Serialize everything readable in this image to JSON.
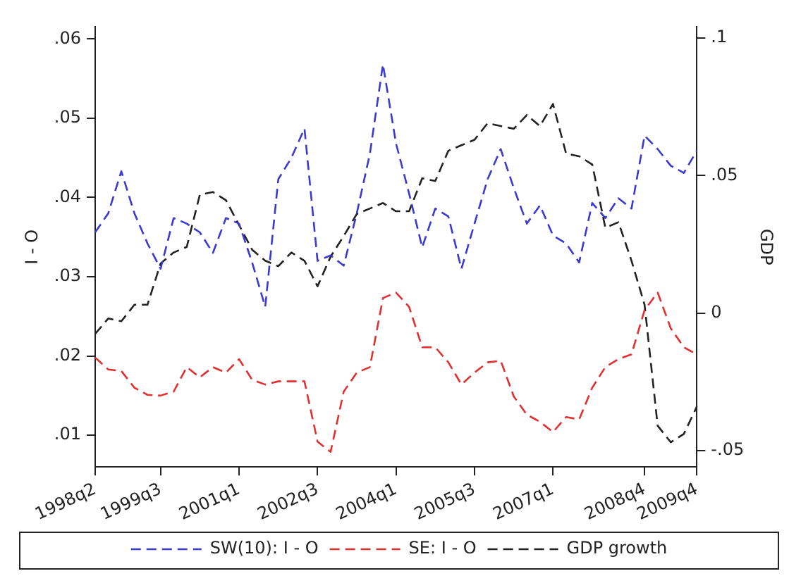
{
  "chart_data": {
    "type": "line",
    "ylabel": "I - O",
    "y2label": "GDP",
    "legend": "bottom",
    "grid": false,
    "marker": "none",
    "line_style": "dashed",
    "categories": [
      "1998q2",
      null,
      null,
      null,
      null,
      "1999q3",
      null,
      null,
      null,
      null,
      null,
      "2001q1",
      null,
      null,
      null,
      null,
      null,
      "2002q3",
      null,
      null,
      null,
      null,
      null,
      "2004q1",
      null,
      null,
      null,
      null,
      null,
      "2005q3",
      null,
      null,
      null,
      null,
      null,
      "2007q1",
      null,
      null,
      null,
      null,
      null,
      null,
      "2008q4",
      null,
      null,
      null,
      "2009q4"
    ],
    "ylim": [
      0.006,
      0.0615
    ],
    "yticks": [
      {
        "value": 0.01,
        "label": ".01"
      },
      {
        "value": 0.02,
        "label": ".02"
      },
      {
        "value": 0.03,
        "label": ".03"
      },
      {
        "value": 0.04,
        "label": ".04"
      },
      {
        "value": 0.05,
        "label": ".05"
      },
      {
        "value": 0.06,
        "label": ".06"
      }
    ],
    "y2lim": [
      -0.056,
      0.104
    ],
    "y2ticks": [
      {
        "value": -0.05,
        "label": "-.05"
      },
      0,
      {
        "value": 0.05,
        "label": ".05"
      },
      {
        "value": 0.1,
        "label": ".1"
      }
    ],
    "series": [
      {
        "name": "SW(10): I - O",
        "color": "#3a3ad0",
        "values": [
          0.0356,
          0.038,
          0.0433,
          0.038,
          0.0342,
          0.031,
          0.0374,
          0.0367,
          0.0356,
          0.033,
          0.0374,
          0.0367,
          0.0318,
          0.0262,
          0.0423,
          0.045,
          0.0487,
          0.032,
          0.0327,
          0.0314,
          0.038,
          0.0455,
          0.0568,
          0.0468,
          0.0405,
          0.0337,
          0.0386,
          0.0376,
          0.031,
          0.0367,
          0.0423,
          0.0461,
          0.0412,
          0.0367,
          0.039,
          0.0352,
          0.0342,
          0.0318,
          0.0393,
          0.0374,
          0.0399,
          0.0386,
          0.0478,
          0.0461,
          0.044,
          0.0431,
          0.0459
        ]
      },
      {
        "name": "SE: I - O",
        "color": "#e03030",
        "values": [
          0.0198,
          0.0183,
          0.0181,
          0.016,
          0.0151,
          0.015,
          0.0155,
          0.0186,
          0.0173,
          0.0186,
          0.0179,
          0.0196,
          0.017,
          0.0164,
          0.0168,
          0.0168,
          0.0168,
          0.0092,
          0.0079,
          0.0155,
          0.0179,
          0.0186,
          0.0273,
          0.028,
          0.0262,
          0.0211,
          0.0211,
          0.0192,
          0.0164,
          0.0179,
          0.0192,
          0.0194,
          0.0149,
          0.0126,
          0.0117,
          0.0104,
          0.0123,
          0.012,
          0.016,
          0.0186,
          0.0196,
          0.0202,
          0.0258,
          0.028,
          0.0235,
          0.0211,
          0.0202
        ]
      },
      {
        "name": "GDP growth",
        "color": "#222222",
        "axis": "y2",
        "values": [
          -0.0076,
          -0.002,
          -0.003,
          0.003,
          0.003,
          0.018,
          0.022,
          0.024,
          0.043,
          0.044,
          0.041,
          0.032,
          0.023,
          0.019,
          0.017,
          0.022,
          0.019,
          0.0097,
          0.0205,
          0.028,
          0.036,
          0.038,
          0.04,
          0.037,
          0.037,
          0.049,
          0.048,
          0.059,
          0.061,
          0.063,
          0.069,
          0.068,
          0.067,
          0.072,
          0.068,
          0.076,
          0.058,
          0.057,
          0.054,
          0.031,
          0.033,
          0.019,
          0.003,
          -0.041,
          -0.047,
          -0.044,
          -0.034
        ]
      }
    ]
  }
}
